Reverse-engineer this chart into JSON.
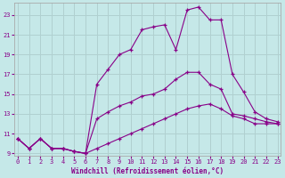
{
  "xlabel": "Windchill (Refroidissement éolien,°C)",
  "background_color": "#c5e8e8",
  "grid_color": "#b0d0d0",
  "line_color": "#880088",
  "x_vals": [
    0,
    1,
    2,
    3,
    4,
    5,
    6,
    7,
    8,
    9,
    10,
    11,
    12,
    13,
    14,
    15,
    16,
    17,
    18,
    19,
    20,
    21,
    22,
    23
  ],
  "line_top": [
    10.5,
    9.5,
    10.5,
    9.5,
    9.5,
    9.2,
    9.0,
    16.0,
    17.5,
    19.0,
    19.5,
    21.5,
    21.8,
    22.0,
    19.5,
    23.5,
    23.8,
    22.5,
    22.5,
    17.0,
    15.2,
    13.2,
    12.5,
    12.2
  ],
  "line_mid": [
    10.5,
    9.5,
    10.5,
    9.5,
    9.5,
    9.2,
    9.0,
    12.5,
    13.2,
    13.8,
    14.2,
    14.8,
    15.0,
    15.5,
    16.5,
    17.2,
    17.2,
    16.0,
    15.5,
    13.0,
    12.8,
    12.5,
    12.2,
    12.0
  ],
  "line_bot": [
    10.5,
    9.5,
    10.5,
    9.5,
    9.5,
    9.2,
    9.0,
    9.5,
    10.0,
    10.5,
    11.0,
    11.5,
    12.0,
    12.5,
    13.0,
    13.5,
    13.8,
    14.0,
    13.5,
    12.8,
    12.5,
    12.0,
    12.0,
    12.0
  ],
  "ylim": [
    8.8,
    24.2
  ],
  "xlim": [
    -0.3,
    23.3
  ],
  "yticks": [
    9,
    11,
    13,
    15,
    17,
    19,
    21,
    23
  ],
  "xticks": [
    0,
    1,
    2,
    3,
    4,
    5,
    6,
    7,
    8,
    9,
    10,
    11,
    12,
    13,
    14,
    15,
    16,
    17,
    18,
    19,
    20,
    21,
    22,
    23
  ]
}
